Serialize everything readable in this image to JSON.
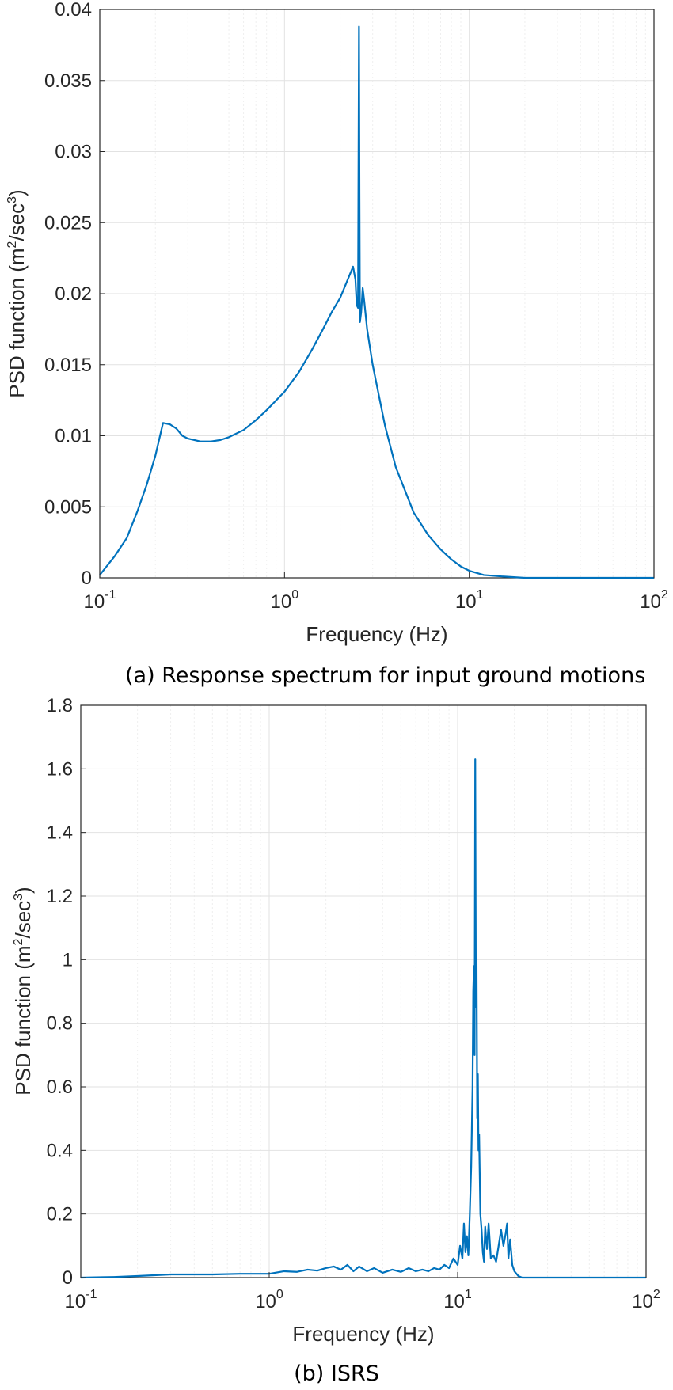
{
  "captions": {
    "a": "(a) Response spectrum for input ground motions",
    "b": "(b) ISRS"
  },
  "colors": {
    "line": "#0072BD",
    "axis": "#262626",
    "grid": "#e2e2e2",
    "minor_grid": "#efefef"
  },
  "chart_data": [
    {
      "type": "line",
      "title": "",
      "xlabel": "Frequency (Hz)",
      "ylabel": "PSD function (m²/sec³)",
      "ylabel_parts": {
        "pre": "PSD function (m",
        "exp1": "2",
        "mid": "/sec",
        "exp2": "3",
        "post": ")"
      },
      "xscale": "log",
      "xlim": [
        0.1,
        100
      ],
      "ylim": [
        0,
        0.04
      ],
      "grid": true,
      "xticks": [
        {
          "base": "10",
          "exp": "-1"
        },
        {
          "base": "10",
          "exp": "0"
        },
        {
          "base": "10",
          "exp": "1"
        },
        {
          "base": "10",
          "exp": "2"
        }
      ],
      "yticks": [
        "0",
        "0.005",
        "0.01",
        "0.015",
        "0.02",
        "0.025",
        "0.03",
        "0.035",
        "0.04"
      ],
      "series": [
        {
          "x": [
            0.1,
            0.12,
            0.14,
            0.16,
            0.18,
            0.2,
            0.22,
            0.24,
            0.26,
            0.28,
            0.3,
            0.35,
            0.4,
            0.45,
            0.5,
            0.6,
            0.7,
            0.8,
            1.0,
            1.2,
            1.4,
            1.6,
            1.8,
            2.0,
            2.2,
            2.35,
            2.42,
            2.46,
            2.5,
            2.53,
            2.545,
            2.56,
            2.6,
            2.65,
            2.7,
            2.8,
            3.0,
            3.5,
            4.0,
            5.0,
            6.0,
            7.0,
            8.0,
            9.0,
            10.0,
            12.0,
            15.0,
            20.0,
            25.0,
            30.0,
            50.0,
            100.0
          ],
          "y": [
            0.0002,
            0.0015,
            0.0028,
            0.0047,
            0.0066,
            0.0086,
            0.0109,
            0.0108,
            0.0105,
            0.01,
            0.0098,
            0.0096,
            0.0096,
            0.0097,
            0.0099,
            0.0104,
            0.0111,
            0.0118,
            0.0131,
            0.0145,
            0.016,
            0.0174,
            0.0187,
            0.0197,
            0.021,
            0.0219,
            0.021,
            0.0192,
            0.019,
            0.0388,
            0.027,
            0.018,
            0.0187,
            0.0204,
            0.0195,
            0.0175,
            0.015,
            0.0107,
            0.0078,
            0.0046,
            0.003,
            0.002,
            0.0013,
            0.0008,
            0.0005,
            0.0002,
            0.0001,
            0.0,
            0.0,
            0.0,
            0.0,
            0.0
          ]
        }
      ]
    },
    {
      "type": "line",
      "title": "",
      "xlabel": "Frequency (Hz)",
      "ylabel": "PSD function (m²/sec³)",
      "ylabel_parts": {
        "pre": "PSD function (m",
        "exp1": "2",
        "mid": "/sec",
        "exp2": "3",
        "post": ")"
      },
      "xscale": "log",
      "xlim": [
        0.1,
        100
      ],
      "ylim": [
        0,
        1.8
      ],
      "grid": true,
      "xticks": [
        {
          "base": "10",
          "exp": "-1"
        },
        {
          "base": "10",
          "exp": "0"
        },
        {
          "base": "10",
          "exp": "1"
        },
        {
          "base": "10",
          "exp": "2"
        }
      ],
      "yticks": [
        "0",
        "0.2",
        "0.4",
        "0.6",
        "0.8",
        "1",
        "1.2",
        "1.4",
        "1.6",
        "1.8"
      ],
      "series": [
        {
          "x": [
            0.1,
            0.15,
            0.2,
            0.3,
            0.5,
            0.7,
            1.0,
            1.2,
            1.4,
            1.6,
            1.8,
            2.0,
            2.2,
            2.4,
            2.6,
            2.8,
            3.0,
            3.3,
            3.6,
            4.0,
            4.5,
            5.0,
            5.5,
            6.0,
            6.5,
            7.0,
            7.5,
            8.0,
            8.5,
            9.0,
            9.5,
            10.0,
            10.3,
            10.6,
            10.8,
            11.0,
            11.2,
            11.4,
            11.6,
            11.8,
            12.0,
            12.1,
            12.2,
            12.3,
            12.4,
            12.5,
            12.6,
            12.7,
            12.8,
            12.9,
            13.0,
            13.2,
            13.4,
            13.6,
            13.8,
            14.0,
            14.3,
            14.6,
            15.0,
            15.5,
            16.0,
            16.5,
            17.0,
            17.5,
            18.0,
            18.3,
            18.6,
            19.0,
            19.5,
            20.0,
            21.0,
            22.0,
            25.0,
            30.0,
            50.0,
            100.0
          ],
          "y": [
            0.0,
            0.002,
            0.005,
            0.01,
            0.01,
            0.012,
            0.012,
            0.02,
            0.018,
            0.025,
            0.022,
            0.03,
            0.035,
            0.025,
            0.04,
            0.02,
            0.035,
            0.02,
            0.03,
            0.015,
            0.025,
            0.018,
            0.03,
            0.02,
            0.025,
            0.02,
            0.03,
            0.025,
            0.04,
            0.03,
            0.06,
            0.04,
            0.1,
            0.06,
            0.17,
            0.08,
            0.13,
            0.07,
            0.2,
            0.35,
            0.6,
            0.9,
            0.98,
            0.7,
            1.63,
            0.85,
            1.0,
            0.5,
            0.64,
            0.4,
            0.45,
            0.2,
            0.15,
            0.08,
            0.05,
            0.16,
            0.09,
            0.17,
            0.06,
            0.07,
            0.05,
            0.1,
            0.15,
            0.1,
            0.14,
            0.17,
            0.06,
            0.12,
            0.04,
            0.02,
            0.005,
            0.0,
            0.0,
            0.0,
            0.0,
            0.0
          ]
        }
      ]
    }
  ]
}
